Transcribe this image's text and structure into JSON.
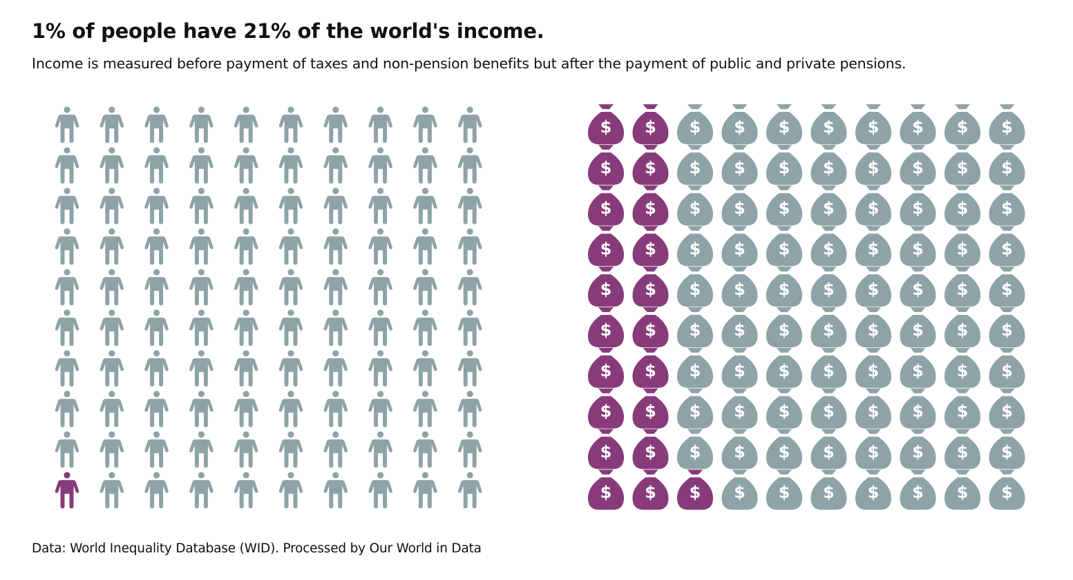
{
  "header": {
    "title": "1% of people have 21% of the world's income.",
    "subtitle": "Income is measured before payment of taxes and non-pension benefits but after the payment of public and private pensions."
  },
  "footer": {
    "source": "Data: World Inequality Database (WID). Processed by Our World in Data"
  },
  "colors": {
    "highlight": "#883b7b",
    "base": "#8ea3a7"
  },
  "chart_data": [
    {
      "type": "waffle",
      "icon": "person-icon",
      "total_units": 100,
      "highlighted_units": 1,
      "highlighted_percent": 1,
      "fill_order": "column-major, bottom-up"
    },
    {
      "type": "waffle",
      "icon": "money-bag-icon",
      "total_units": 100,
      "highlighted_units": 21,
      "highlighted_percent": 21,
      "fill_order": "column-major, bottom-up"
    }
  ]
}
